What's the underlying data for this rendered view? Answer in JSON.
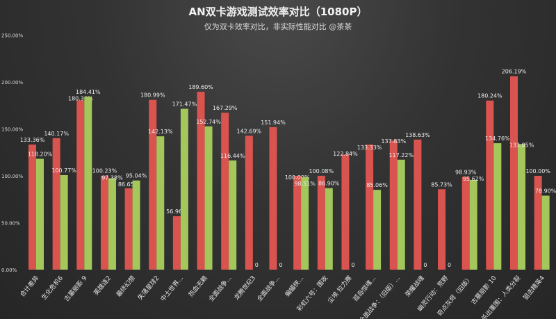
{
  "chart_data": {
    "type": "bar",
    "title": "AN双卡游戏测试效率对比（1080P）",
    "subtitle": "仅为双卡效率对比，非实际性能对比 @茶茶",
    "xlabel": "",
    "ylabel": "",
    "ylim": [
      0,
      250
    ],
    "yticks": [
      "0.00%",
      "50.00%",
      "100.00%",
      "150.00%",
      "200.00%",
      "250.00%"
    ],
    "grid": false,
    "legend": "none",
    "categories": [
      "合计差异",
      "生化危机6",
      "古墓丽影 9",
      "英雄连2",
      "最终幻想",
      "失落星球2",
      "中土世界...",
      "热血无赖",
      "全面战争...",
      "龙腾世纪3",
      "全面战争...",
      "蝙蝠侠...",
      "彩虹六号：围攻",
      "尘埃 拉力赛",
      "孤岛惊魂...",
      "全面战争：（旧版）...",
      "荣耀战魂",
      "幽灵行动：荒野",
      "奇点灰烬（旧版）",
      "古墓丽影 10",
      "杀出重围：人类分裂",
      "狙击精英4"
    ],
    "series": [
      {
        "color": "#d9534f",
        "values": [
          133.36,
          140.17,
          180.36,
          100.23,
          86.65,
          180.99,
          56.96,
          189.6,
          167.29,
          142.69,
          151.94,
          100.0,
          100.08,
          122.84,
          133.33,
          137.83,
          138.63,
          85.73,
          98.93,
          180.24,
          206.19,
          100.0
        ]
      },
      {
        "color": "#a3c75a",
        "values": [
          118.2,
          100.77,
          184.41,
          97.38,
          95.04,
          142.13,
          171.47,
          152.74,
          116.44,
          0,
          0,
          98.51,
          86.9,
          0,
          85.06,
          117.22,
          0,
          0,
          95.62,
          134.76,
          133.85,
          78.9
        ]
      }
    ]
  }
}
